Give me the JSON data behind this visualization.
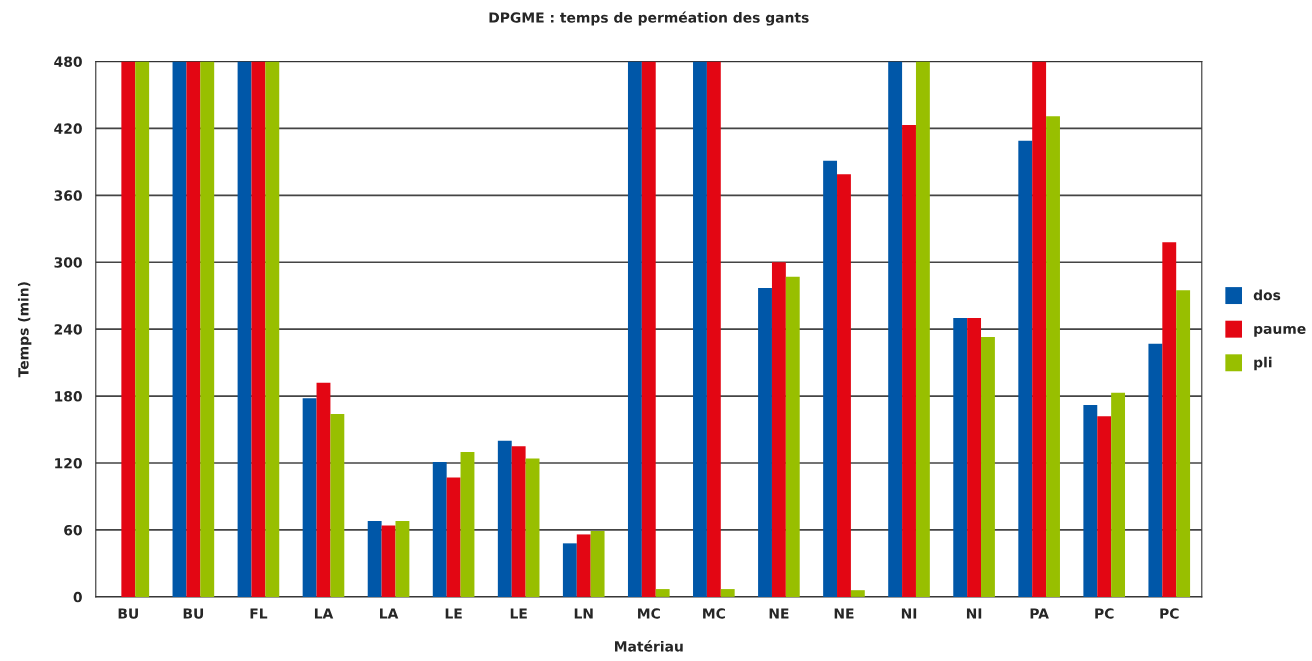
{
  "chart_data": {
    "type": "bar",
    "title": "DPGME : temps de perméation des gants",
    "xlabel": "Matériau",
    "ylabel": "Temps (min)",
    "categories": [
      "BU",
      "BU",
      "FL",
      "LA",
      "LA",
      "LE",
      "LE",
      "LN",
      "MC",
      "MC",
      "NE",
      "NE",
      "NI",
      "NI",
      "PA",
      "PC",
      "PC"
    ],
    "series": [
      {
        "name": "dos",
        "color": "#0057a8",
        "values": [
          0,
          480,
          480,
          178,
          68,
          121,
          140,
          48,
          480,
          480,
          277,
          391,
          480,
          250,
          409,
          172,
          227
        ]
      },
      {
        "name": "paume",
        "color": "#e30613",
        "values": [
          480,
          480,
          480,
          192,
          64,
          107,
          135,
          56,
          480,
          480,
          300,
          379,
          423,
          250,
          480,
          162,
          318
        ]
      },
      {
        "name": "pli",
        "color": "#98bf00",
        "values": [
          480,
          480,
          480,
          164,
          68,
          130,
          124,
          59,
          7,
          7,
          287,
          6,
          480,
          233,
          431,
          183,
          275
        ]
      }
    ],
    "ylim": [
      0,
      480
    ],
    "yticks": [
      0,
      60,
      120,
      180,
      240,
      300,
      360,
      420,
      480
    ],
    "grid": "y",
    "legend": "right"
  }
}
